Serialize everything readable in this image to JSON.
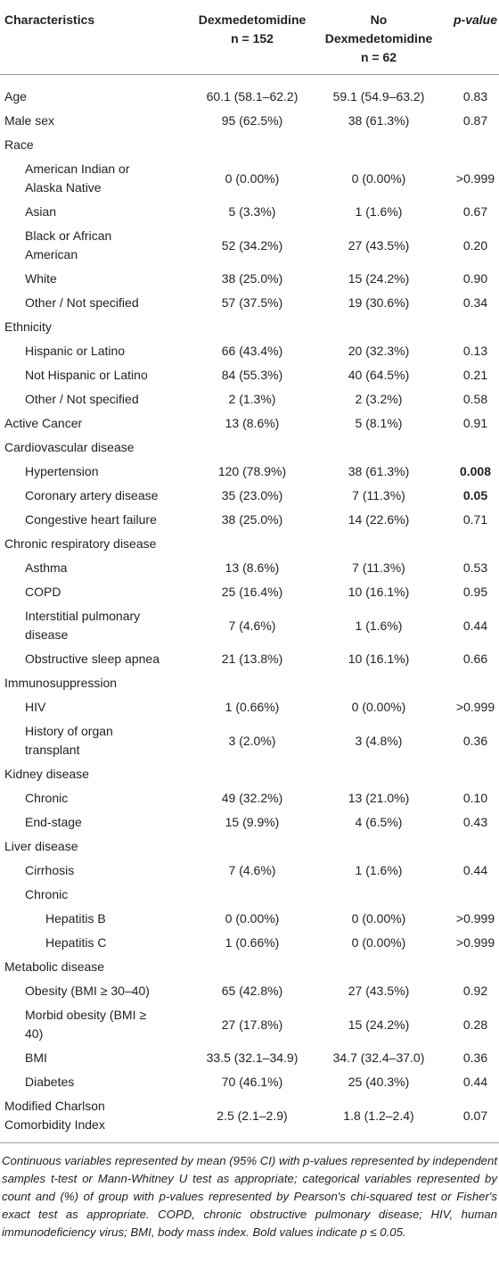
{
  "header": {
    "characteristics": "Characteristics",
    "group1": {
      "title": "Dexmedetomidine",
      "n": "n = 152"
    },
    "group2": {
      "title": "No Dexmedetomidine",
      "n": "n = 62"
    },
    "p": "p-value"
  },
  "rows": [
    {
      "label": "Age",
      "level": 0,
      "values": [
        "60.1 (58.1–62.2)",
        "59.1 (54.9–63.2)",
        "0.83"
      ]
    },
    {
      "label": "Male sex",
      "level": 0,
      "values": [
        "95 (62.5%)",
        "38 (61.3%)",
        "0.87"
      ]
    },
    {
      "label": "Race",
      "level": 0
    },
    {
      "label": "American Indian or Alaska Native",
      "level": 1,
      "values": [
        "0 (0.00%)",
        "0 (0.00%)",
        ">0.999"
      ]
    },
    {
      "label": "Asian",
      "level": 1,
      "values": [
        "5 (3.3%)",
        "1 (1.6%)",
        "0.67"
      ]
    },
    {
      "label": "Black or African American",
      "level": 1,
      "values": [
        "52 (34.2%)",
        "27 (43.5%)",
        "0.20"
      ]
    },
    {
      "label": "White",
      "level": 1,
      "values": [
        "38 (25.0%)",
        "15 (24.2%)",
        "0.90"
      ]
    },
    {
      "label": "Other / Not specified",
      "level": 1,
      "values": [
        "57 (37.5%)",
        "19 (30.6%)",
        "0.34"
      ]
    },
    {
      "label": "Ethnicity",
      "level": 0
    },
    {
      "label": "Hispanic or Latino",
      "level": 1,
      "values": [
        "66 (43.4%)",
        "20 (32.3%)",
        "0.13"
      ]
    },
    {
      "label": "Not Hispanic or Latino",
      "level": 1,
      "values": [
        "84 (55.3%)",
        "40 (64.5%)",
        "0.21"
      ]
    },
    {
      "label": "Other / Not specified",
      "level": 1,
      "values": [
        "2 (1.3%)",
        "2 (3.2%)",
        "0.58"
      ]
    },
    {
      "label": "Active Cancer",
      "level": 0,
      "values": [
        "13 (8.6%)",
        "5 (8.1%)",
        "0.91"
      ]
    },
    {
      "label": "Cardiovascular disease",
      "level": 0
    },
    {
      "label": "Hypertension",
      "level": 1,
      "values": [
        "120 (78.9%)",
        "38 (61.3%)",
        "0.008"
      ],
      "bold": true
    },
    {
      "label": "Coronary artery disease",
      "level": 1,
      "values": [
        "35 (23.0%)",
        "7 (11.3%)",
        "0.05"
      ],
      "bold": true
    },
    {
      "label": "Congestive heart failure",
      "level": 1,
      "values": [
        "38 (25.0%)",
        "14 (22.6%)",
        "0.71"
      ]
    },
    {
      "label": "Chronic respiratory disease",
      "level": 0
    },
    {
      "label": "Asthma",
      "level": 1,
      "values": [
        "13 (8.6%)",
        "7 (11.3%)",
        "0.53"
      ]
    },
    {
      "label": "COPD",
      "level": 1,
      "values": [
        "25 (16.4%)",
        "10 (16.1%)",
        "0.95"
      ]
    },
    {
      "label": "Interstitial pulmonary disease",
      "level": 1,
      "values": [
        "7 (4.6%)",
        "1 (1.6%)",
        "0.44"
      ]
    },
    {
      "label": "Obstructive sleep apnea",
      "level": 1,
      "values": [
        "21 (13.8%)",
        "10 (16.1%)",
        "0.66"
      ]
    },
    {
      "label": "Immunosuppression",
      "level": 0
    },
    {
      "label": "HIV",
      "level": 1,
      "values": [
        "1 (0.66%)",
        "0 (0.00%)",
        ">0.999"
      ]
    },
    {
      "label": "History of organ transplant",
      "level": 1,
      "values": [
        "3 (2.0%)",
        "3 (4.8%)",
        "0.36"
      ]
    },
    {
      "label": "Kidney disease",
      "level": 0
    },
    {
      "label": "Chronic",
      "level": 1,
      "values": [
        "49 (32.2%)",
        "13 (21.0%)",
        "0.10"
      ]
    },
    {
      "label": "End-stage",
      "level": 1,
      "values": [
        "15 (9.9%)",
        "4 (6.5%)",
        "0.43"
      ]
    },
    {
      "label": "Liver disease",
      "level": 0
    },
    {
      "label": "Cirrhosis",
      "level": 1,
      "values": [
        "7 (4.6%)",
        "1 (1.6%)",
        "0.44"
      ]
    },
    {
      "label": "Chronic",
      "level": 1
    },
    {
      "label": "Hepatitis B",
      "level": 2,
      "values": [
        "0 (0.00%)",
        "0 (0.00%)",
        ">0.999"
      ]
    },
    {
      "label": "Hepatitis C",
      "level": 2,
      "values": [
        "1 (0.66%)",
        "0 (0.00%)",
        ">0.999"
      ]
    },
    {
      "label": "Metabolic disease",
      "level": 0
    },
    {
      "label": "Obesity (BMI ≥ 30–40)",
      "level": 1,
      "values": [
        "65 (42.8%)",
        "27 (43.5%)",
        "0.92"
      ]
    },
    {
      "label": "Morbid obesity (BMI ≥ 40)",
      "level": 1,
      "values": [
        "27 (17.8%)",
        "15 (24.2%)",
        "0.28"
      ]
    },
    {
      "label": "BMI",
      "level": 1,
      "values": [
        "33.5 (32.1–34.9)",
        "34.7 (32.4–37.0)",
        "0.36"
      ]
    },
    {
      "label": "Diabetes",
      "level": 1,
      "values": [
        "70 (46.1%)",
        "25 (40.3%)",
        "0.44"
      ]
    },
    {
      "label": "Modified Charlson Comorbidity Index",
      "level": 0,
      "values": [
        "2.5 (2.1–2.9)",
        "1.8 (1.2–2.4)",
        "0.07"
      ]
    }
  ],
  "footnote": "Continuous variables represented by mean (95% CI) with p-values represented by independent samples t-test or Mann-Whitney U test as appropriate; categorical variables represented by count and (%) of group with p-values represented by Pearson's chi-squared test or Fisher's exact test as appropriate. COPD, chronic obstructive pulmonary disease; HIV, human immunodeficiency virus; BMI, body mass index. Bold values indicate p ≤ 0.05."
}
